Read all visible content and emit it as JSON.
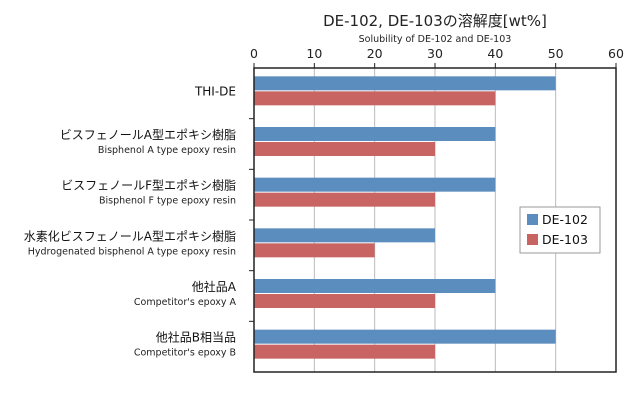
{
  "chart_data": {
    "type": "bar",
    "orientation": "horizontal",
    "title": "DE-102, DE-103の溶解度[wt%]",
    "subtitle": "Solubility of DE-102 and DE-103",
    "xlim": [
      0,
      60
    ],
    "xticks": [
      0,
      10,
      20,
      30,
      40,
      50,
      60
    ],
    "xaxis_position": "top",
    "grid": true,
    "legend_position": "right",
    "categories": [
      {
        "label": "THI-DE",
        "sublabel": ""
      },
      {
        "label": "ビスフェノールA型エポキシ樹脂",
        "sublabel": "Bisphenol A type epoxy resin"
      },
      {
        "label": "ビスフェノールF型エポキシ樹脂",
        "sublabel": "Bisphenol F type epoxy resin"
      },
      {
        "label": "水素化ビスフェノールA型エポキシ樹脂",
        "sublabel": "Hydrogenated bisphenol A type epoxy resin"
      },
      {
        "label": "他社品A",
        "sublabel": "Competitor's epoxy A"
      },
      {
        "label": "他社品B相当品",
        "sublabel": "Competitor's epoxy B"
      }
    ],
    "series": [
      {
        "name": "DE-102",
        "color": "#5b8dbf",
        "values": [
          50,
          40,
          40,
          30,
          40,
          50
        ]
      },
      {
        "name": "DE-103",
        "color": "#c86462",
        "values": [
          40,
          30,
          30,
          20,
          30,
          30
        ]
      }
    ]
  }
}
